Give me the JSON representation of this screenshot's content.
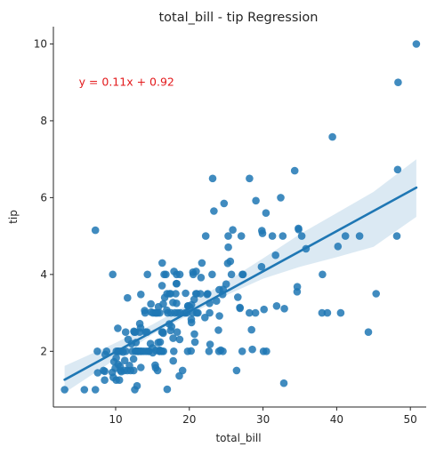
{
  "chart_data": {
    "type": "scatter",
    "title": "total_bill - tip Regression",
    "xlabel": "total_bill",
    "ylabel": "tip",
    "xlim": [
      1.55,
      52.15
    ],
    "ylim": [
      0.55,
      10.45
    ],
    "xticks": [
      10,
      20,
      30,
      40,
      50
    ],
    "yticks": [
      2,
      4,
      6,
      8,
      10
    ],
    "grid": false,
    "colors": {
      "points": "#1f77b4",
      "line": "#1f77b4",
      "band": "#1f77b4",
      "annotation": "#e31a1c",
      "axis": "#262626"
    },
    "annotation": {
      "text": "y = 0.11x + 0.92",
      "x": 5,
      "y": 9
    },
    "regression": {
      "x": [
        3.07,
        50.81
      ],
      "y": [
        1.26,
        6.26
      ]
    },
    "confidence_band": {
      "x": [
        3.07,
        10,
        15,
        20,
        25,
        30,
        35,
        40,
        45,
        50.81
      ],
      "lower": [
        0.92,
        1.8,
        2.44,
        2.95,
        3.46,
        3.89,
        4.2,
        4.45,
        4.72,
        5.5
      ],
      "upper": [
        1.62,
        2.22,
        2.7,
        3.24,
        3.81,
        4.42,
        5.05,
        5.6,
        6.15,
        7.0
      ]
    },
    "points": [
      [
        3.07,
        1.0
      ],
      [
        5.75,
        1.0
      ],
      [
        7.25,
        1.0
      ],
      [
        7.25,
        5.15
      ],
      [
        7.51,
        2.0
      ],
      [
        7.56,
        1.44
      ],
      [
        8.35,
        1.5
      ],
      [
        8.51,
        1.25
      ],
      [
        8.52,
        1.48
      ],
      [
        8.58,
        1.92
      ],
      [
        8.77,
        2.0
      ],
      [
        9.55,
        1.45
      ],
      [
        9.6,
        4.0
      ],
      [
        9.68,
        1.32
      ],
      [
        9.78,
        1.73
      ],
      [
        9.94,
        1.56
      ],
      [
        10.07,
        1.25
      ],
      [
        10.07,
        1.83
      ],
      [
        10.09,
        2.0
      ],
      [
        10.29,
        2.6
      ],
      [
        10.33,
        2.0
      ],
      [
        10.34,
        1.66
      ],
      [
        10.34,
        2.0
      ],
      [
        10.51,
        1.25
      ],
      [
        10.59,
        1.61
      ],
      [
        10.63,
        2.0
      ],
      [
        10.65,
        1.5
      ],
      [
        10.77,
        1.47
      ],
      [
        11.02,
        1.98
      ],
      [
        11.17,
        1.5
      ],
      [
        11.24,
        1.76
      ],
      [
        11.35,
        2.5
      ],
      [
        11.38,
        2.0
      ],
      [
        11.59,
        1.5
      ],
      [
        11.61,
        3.39
      ],
      [
        11.69,
        2.31
      ],
      [
        11.87,
        1.63
      ],
      [
        12.03,
        1.5
      ],
      [
        12.16,
        2.2
      ],
      [
        12.26,
        2.0
      ],
      [
        12.43,
        1.8
      ],
      [
        12.46,
        1.5
      ],
      [
        12.48,
        2.52
      ],
      [
        12.54,
        2.5
      ],
      [
        12.6,
        1.0
      ],
      [
        12.66,
        2.5
      ],
      [
        12.69,
        2.0
      ],
      [
        12.74,
        2.01
      ],
      [
        12.76,
        2.23
      ],
      [
        12.9,
        1.1
      ],
      [
        13.0,
        2.0
      ],
      [
        13.03,
        2.0
      ],
      [
        13.13,
        2.0
      ],
      [
        13.27,
        2.5
      ],
      [
        13.28,
        2.72
      ],
      [
        13.37,
        2.0
      ],
      [
        13.39,
        2.61
      ],
      [
        13.42,
        3.48
      ],
      [
        13.42,
        1.58
      ],
      [
        13.51,
        2.0
      ],
      [
        13.81,
        2.0
      ],
      [
        13.94,
        3.06
      ],
      [
        14.0,
        3.0
      ],
      [
        14.07,
        2.5
      ],
      [
        14.15,
        2.0
      ],
      [
        14.26,
        2.5
      ],
      [
        14.31,
        4.0
      ],
      [
        14.48,
        2.0
      ],
      [
        14.52,
        2.0
      ],
      [
        14.73,
        2.2
      ],
      [
        14.78,
        3.23
      ],
      [
        14.83,
        3.02
      ],
      [
        15.01,
        2.09
      ],
      [
        15.04,
        1.96
      ],
      [
        15.06,
        3.0
      ],
      [
        15.36,
        1.64
      ],
      [
        15.38,
        3.0
      ],
      [
        15.42,
        1.57
      ],
      [
        15.48,
        2.02
      ],
      [
        15.53,
        3.0
      ],
      [
        15.69,
        3.0
      ],
      [
        15.69,
        1.5
      ],
      [
        15.77,
        2.23
      ],
      [
        15.81,
        3.16
      ],
      [
        15.95,
        2.0
      ],
      [
        15.98,
        2.03
      ],
      [
        15.98,
        3.0
      ],
      [
        16.0,
        2.0
      ],
      [
        16.04,
        2.24
      ],
      [
        16.21,
        2.0
      ],
      [
        16.27,
        2.5
      ],
      [
        16.29,
        3.71
      ],
      [
        16.31,
        2.0
      ],
      [
        16.32,
        4.3
      ],
      [
        16.4,
        2.5
      ],
      [
        16.45,
        2.47
      ],
      [
        16.47,
        3.23
      ],
      [
        16.49,
        2.0
      ],
      [
        16.58,
        4.0
      ],
      [
        16.66,
        3.4
      ],
      [
        16.82,
        4.0
      ],
      [
        16.93,
        3.07
      ],
      [
        16.97,
        3.5
      ],
      [
        16.99,
        1.01
      ],
      [
        17.07,
        3.0
      ],
      [
        17.29,
        2.71
      ],
      [
        17.31,
        3.5
      ],
      [
        17.46,
        2.54
      ],
      [
        17.47,
        3.5
      ],
      [
        17.51,
        3.0
      ],
      [
        17.59,
        2.64
      ],
      [
        17.78,
        3.27
      ],
      [
        17.81,
        2.34
      ],
      [
        17.82,
        1.75
      ],
      [
        17.89,
        2.0
      ],
      [
        17.92,
        4.08
      ],
      [
        18.04,
        3.0
      ],
      [
        18.15,
        3.5
      ],
      [
        18.24,
        3.76
      ],
      [
        18.26,
        3.25
      ],
      [
        18.28,
        4.0
      ],
      [
        18.29,
        3.76
      ],
      [
        18.35,
        2.5
      ],
      [
        18.43,
        3.0
      ],
      [
        18.64,
        1.36
      ],
      [
        18.69,
        2.31
      ],
      [
        18.71,
        4.0
      ],
      [
        18.78,
        3.0
      ],
      [
        19.08,
        1.5
      ],
      [
        19.44,
        3.0
      ],
      [
        19.49,
        3.51
      ],
      [
        19.65,
        3.0
      ],
      [
        19.77,
        2.0
      ],
      [
        19.81,
        3.18
      ],
      [
        19.82,
        3.18
      ],
      [
        20.08,
        3.15
      ],
      [
        20.23,
        2.01
      ],
      [
        20.27,
        2.83
      ],
      [
        20.29,
        3.21
      ],
      [
        20.29,
        2.75
      ],
      [
        20.45,
        3.0
      ],
      [
        20.49,
        4.06
      ],
      [
        20.53,
        4.0
      ],
      [
        20.65,
        3.35
      ],
      [
        20.69,
        2.45
      ],
      [
        20.76,
        2.24
      ],
      [
        20.9,
        3.5
      ],
      [
        20.92,
        4.08
      ],
      [
        21.01,
        3.5
      ],
      [
        21.01,
        3.0
      ],
      [
        21.16,
        3.0
      ],
      [
        21.5,
        3.5
      ],
      [
        21.58,
        3.92
      ],
      [
        21.7,
        4.3
      ],
      [
        22.12,
        2.88
      ],
      [
        22.23,
        5.0
      ],
      [
        22.42,
        3.48
      ],
      [
        22.49,
        3.5
      ],
      [
        22.67,
        2.0
      ],
      [
        22.75,
        3.25
      ],
      [
        22.76,
        3.0
      ],
      [
        22.82,
        2.18
      ],
      [
        23.1,
        4.0
      ],
      [
        23.17,
        6.5
      ],
      [
        23.33,
        5.65
      ],
      [
        23.68,
        3.31
      ],
      [
        23.95,
        2.55
      ],
      [
        24.01,
        2.0
      ],
      [
        24.06,
        3.6
      ],
      [
        24.08,
        2.92
      ],
      [
        24.27,
        2.03
      ],
      [
        24.52,
        3.48
      ],
      [
        24.55,
        2.0
      ],
      [
        24.59,
        3.61
      ],
      [
        24.71,
        5.85
      ],
      [
        25.0,
        3.75
      ],
      [
        25.21,
        4.29
      ],
      [
        25.28,
        5.0
      ],
      [
        25.29,
        4.71
      ],
      [
        25.56,
        4.34
      ],
      [
        25.71,
        4.0
      ],
      [
        25.89,
        5.16
      ],
      [
        26.41,
        1.5
      ],
      [
        26.59,
        3.41
      ],
      [
        26.86,
        3.14
      ],
      [
        26.88,
        3.12
      ],
      [
        27.05,
        5.0
      ],
      [
        27.18,
        2.0
      ],
      [
        27.2,
        4.0
      ],
      [
        27.28,
        4.0
      ],
      [
        28.15,
        3.0
      ],
      [
        28.17,
        6.5
      ],
      [
        28.44,
        2.56
      ],
      [
        28.55,
        2.05
      ],
      [
        28.97,
        3.0
      ],
      [
        29.03,
        5.92
      ],
      [
        29.8,
        4.2
      ],
      [
        29.85,
        5.14
      ],
      [
        29.93,
        5.07
      ],
      [
        30.06,
        2.0
      ],
      [
        30.14,
        3.09
      ],
      [
        30.4,
        5.6
      ],
      [
        30.46,
        2.0
      ],
      [
        31.27,
        5.0
      ],
      [
        31.71,
        4.5
      ],
      [
        31.85,
        3.18
      ],
      [
        32.4,
        6.0
      ],
      [
        32.68,
        5.0
      ],
      [
        32.83,
        1.17
      ],
      [
        32.9,
        3.11
      ],
      [
        34.3,
        6.7
      ],
      [
        34.63,
        3.55
      ],
      [
        34.65,
        3.68
      ],
      [
        34.81,
        5.2
      ],
      [
        34.83,
        5.17
      ],
      [
        35.26,
        5.0
      ],
      [
        35.83,
        4.67
      ],
      [
        38.01,
        3.0
      ],
      [
        38.07,
        4.0
      ],
      [
        38.73,
        3.0
      ],
      [
        39.42,
        7.58
      ],
      [
        40.17,
        4.73
      ],
      [
        40.55,
        3.0
      ],
      [
        41.19,
        5.0
      ],
      [
        43.11,
        5.0
      ],
      [
        44.3,
        2.5
      ],
      [
        45.35,
        3.5
      ],
      [
        48.17,
        5.0
      ],
      [
        48.27,
        6.73
      ],
      [
        48.33,
        9.0
      ],
      [
        50.81,
        10.0
      ]
    ]
  }
}
